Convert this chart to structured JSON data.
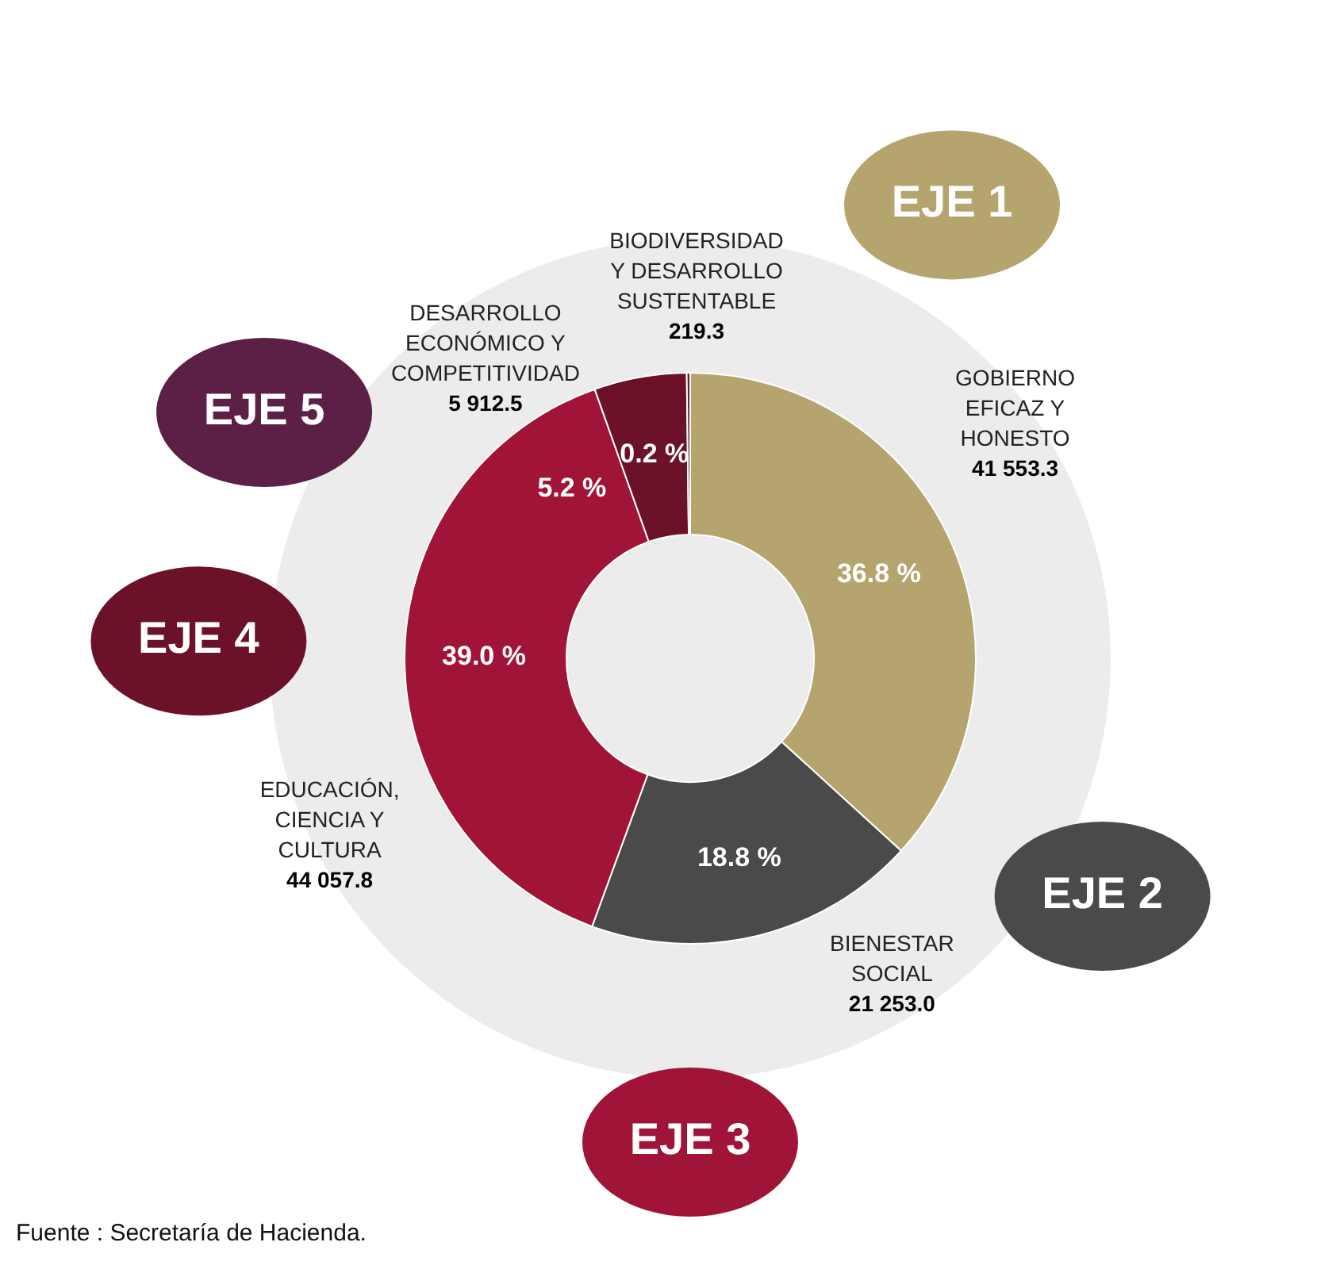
{
  "chart_data": {
    "type": "donut",
    "categories": [
      "GOBIERNO EFICAZ Y HONESTO",
      "BIENESTAR SOCIAL",
      "EDUCACIÓN, CIENCIA Y CULTURA",
      "DESARROLLO ECONÓMICO Y COMPETITIVIDAD",
      "BIODIVERSIDAD Y DESARROLLO SUSTENTABLE"
    ],
    "values": [
      41553.3,
      21253.0,
      44057.8,
      5912.5,
      219.3
    ],
    "value_labels": [
      "41 553.3",
      "21 253.0",
      "44 057.8",
      "5 912.5",
      "219.3"
    ],
    "colors": [
      "#b5a46e",
      "#4a4a4a",
      "#a01437",
      "#6b1128",
      "#5c1f45"
    ],
    "annotations": [
      "EJE 1",
      "EJE 2",
      "EJE 3",
      "EJE 4",
      "EJE 5",
      "36.8 %",
      "18.8 %",
      "39.0 %",
      "5.2 %",
      "0.2 %",
      "Fuente : Secretaría de Hacienda."
    ]
  }
}
